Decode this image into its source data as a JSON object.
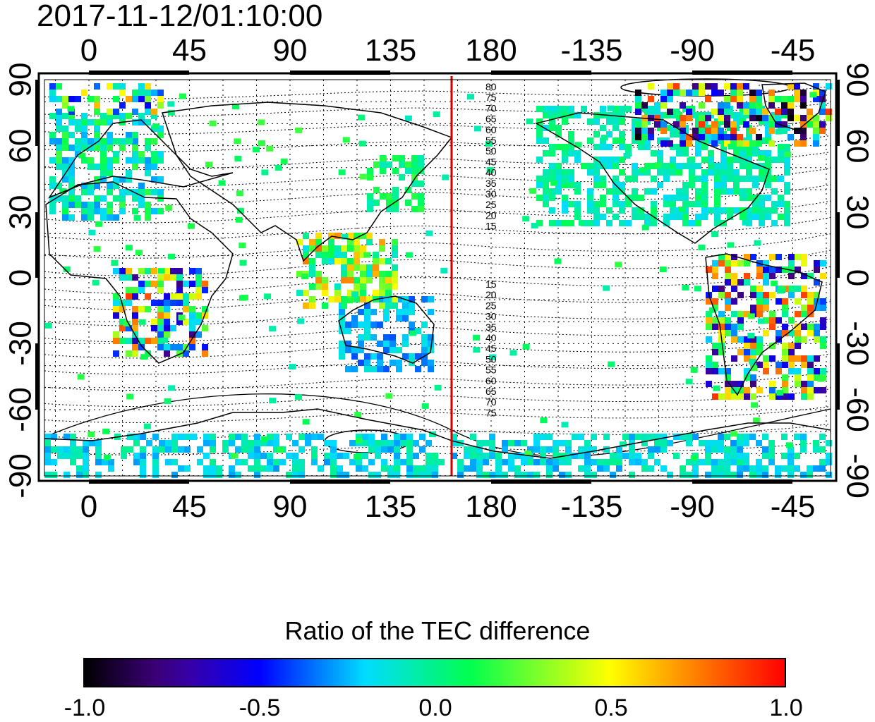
{
  "timestamp": "2017-11-12/01:10:00",
  "colorbar": {
    "title": "Ratio of the TEC difference",
    "min": -1.0,
    "max": 1.0,
    "labels": [
      "-1.0",
      "-0.5",
      "0.0",
      "0.5",
      "1.0"
    ]
  },
  "map": {
    "lon_labels": [
      "0",
      "45",
      "90",
      "135",
      "180",
      "-135",
      "-90",
      "-45"
    ],
    "lat_labels": [
      "90",
      "60",
      "30",
      "0",
      "-30",
      "-60",
      "-90"
    ],
    "meridian_marker_lon": 163,
    "contour_labels_north": [
      "80",
      "75",
      "70",
      "65",
      "60",
      "55",
      "50",
      "45",
      "40",
      "35",
      "30",
      "25",
      "20",
      "15"
    ],
    "contour_labels_south": [
      "15",
      "20",
      "25",
      "30",
      "35",
      "40",
      "45",
      "50",
      "55",
      "60",
      "65",
      "70",
      "75"
    ]
  }
}
